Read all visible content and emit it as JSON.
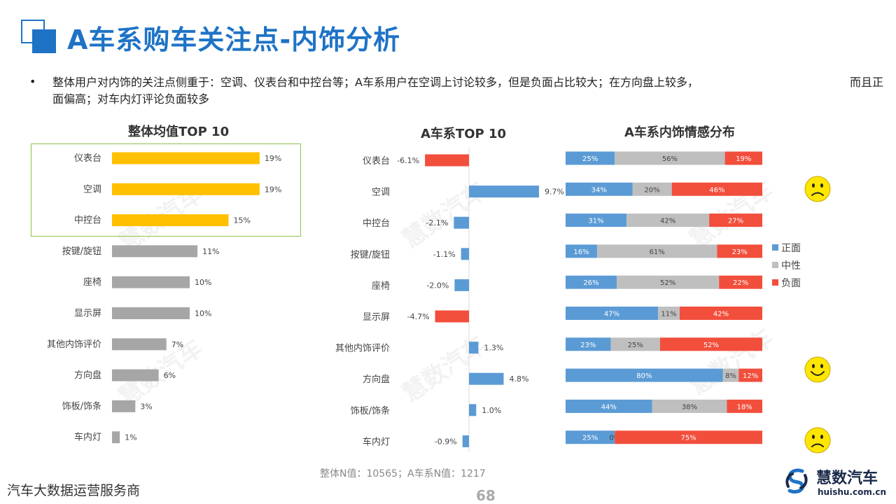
{
  "page": {
    "title": "A车系购车关注点-内饰分析",
    "bullet": "•",
    "summary": "整体用户对内饰的关注点侧重于：空调、仪表台和中控台等；A车系用户在空调上讨论较多，但是负面占比较大；在方向盘上较多，　　　　　　　　　　　　　　而且正面偏高；对车内灯评论负面较多",
    "footnote": "整体N值：10565；A车系N值：1217",
    "page_number": "68",
    "footer_left": "汽车大数据运营服务商",
    "logo_name": "慧数汽车",
    "logo_url": "huishu.com.cn",
    "watermark": "慧数汽车"
  },
  "colors": {
    "title_blue": "#1e73c6",
    "highlight_yellow": "#ffc000",
    "bar_gray": "#a6a6a6",
    "positive_blue": "#5b9bd5",
    "neutral_gray": "#bfbfbf",
    "negative_red": "#f24e3c",
    "highlight_border": "#8bc34a"
  },
  "chart_data": [
    {
      "type": "bar",
      "orientation": "horizontal",
      "title": "整体均值TOP 10",
      "categories": [
        "仪表台",
        "空调",
        "中控台",
        "按键/旋钮",
        "座椅",
        "显示屏",
        "其他内饰评价",
        "方向盘",
        "饰板/饰条",
        "车内灯"
      ],
      "values": [
        19,
        19,
        15,
        11,
        10,
        10,
        7,
        6,
        3,
        1
      ],
      "labels": [
        "19%",
        "19%",
        "15%",
        "11%",
        "10%",
        "10%",
        "7%",
        "6%",
        "3%",
        "1%"
      ],
      "highlighted_count": 3,
      "unit": "%",
      "xlim": [
        0,
        20
      ]
    },
    {
      "type": "bar",
      "orientation": "horizontal",
      "title": "A车系TOP 10",
      "categories": [
        "仪表台",
        "空调",
        "中控台",
        "按键/旋钮",
        "座椅",
        "显示屏",
        "其他内饰评价",
        "方向盘",
        "饰板/饰条",
        "车内灯"
      ],
      "values": [
        -6.1,
        9.7,
        -2.1,
        -1.1,
        -2.0,
        -4.7,
        1.3,
        4.8,
        1.0,
        -0.9
      ],
      "labels": [
        "-6.1%",
        "9.7%",
        "-2.1%",
        "-1.1%",
        "-2.0%",
        "-4.7%",
        "1.3%",
        "4.8%",
        "1.0%",
        "-0.9%"
      ],
      "unit": "%",
      "xlim": [
        -10,
        10
      ],
      "red_rows": [
        0,
        5
      ]
    },
    {
      "type": "bar",
      "orientation": "horizontal",
      "stacked": true,
      "title": "A车系内饰情感分布",
      "categories": [
        "仪表台",
        "空调",
        "中控台",
        "按键/旋钮",
        "座椅",
        "显示屏",
        "其他内饰评价",
        "方向盘",
        "饰板/饰条",
        "车内灯"
      ],
      "legend": [
        "正面",
        "中性",
        "负面"
      ],
      "legend_position": "right",
      "series": [
        {
          "name": "正面",
          "values": [
            25,
            34,
            31,
            16,
            26,
            47,
            23,
            80,
            44,
            25
          ],
          "labels": [
            "25%",
            "34%",
            "31%",
            "16%",
            "26%",
            "47%",
            "23%",
            "80%",
            "44%",
            "25%"
          ]
        },
        {
          "name": "中性",
          "values": [
            56,
            20,
            42,
            61,
            52,
            11,
            25,
            8,
            38,
            0
          ],
          "labels": [
            "56%",
            "20%",
            "42%",
            "61%",
            "52%",
            "11%",
            "25%",
            "8%",
            "38%",
            "0%"
          ]
        },
        {
          "name": "负面",
          "values": [
            19,
            46,
            27,
            23,
            22,
            42,
            52,
            12,
            18,
            75
          ],
          "labels": [
            "19%",
            "46%",
            "27%",
            "23%",
            "22%",
            "42%",
            "52%",
            "12%",
            "18%",
            "75%"
          ]
        }
      ],
      "xlim": [
        0,
        100
      ],
      "face_icons": [
        {
          "row": 1,
          "mood": "sad"
        },
        {
          "row": 7,
          "mood": "happy"
        },
        {
          "row": 9,
          "mood": "sad"
        }
      ]
    }
  ]
}
